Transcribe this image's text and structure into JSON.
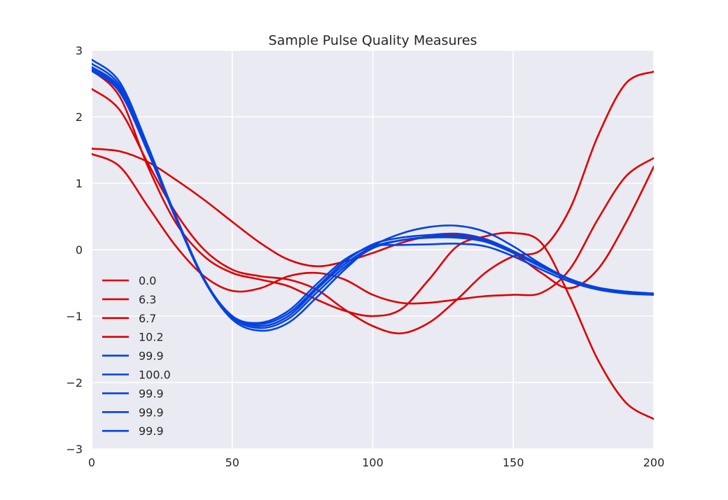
{
  "chart_data": {
    "type": "line",
    "title": "Sample Pulse Quality Measures",
    "xlabel": "",
    "ylabel": "",
    "xlim": [
      0,
      200
    ],
    "ylim": [
      -3,
      3
    ],
    "x_ticks": [
      0,
      50,
      100,
      150,
      200
    ],
    "y_ticks": [
      -3,
      -2,
      -1,
      0,
      1,
      2,
      3
    ],
    "y_tick_labels": [
      "−3",
      "−2",
      "−1",
      "0",
      "1",
      "2",
      "3"
    ],
    "grid": true,
    "background": "#EAEAF2",
    "legend_position": "lower-left",
    "x": [
      0,
      10,
      20,
      30,
      40,
      50,
      60,
      70,
      80,
      90,
      100,
      110,
      120,
      130,
      140,
      150,
      160,
      170,
      180,
      190,
      200
    ],
    "series": [
      {
        "name": "0.0",
        "color": "#DD0000",
        "values": [
          1.52,
          1.48,
          1.32,
          1.05,
          0.75,
          0.42,
          0.1,
          -0.15,
          -0.25,
          -0.18,
          -0.05,
          0.1,
          0.2,
          0.22,
          0.15,
          -0.05,
          -0.35,
          -0.58,
          -0.3,
          0.4,
          1.25
        ]
      },
      {
        "name": "6.3",
        "color": "#DD0000",
        "values": [
          2.42,
          2.1,
          1.3,
          0.55,
          0.0,
          -0.3,
          -0.4,
          -0.45,
          -0.6,
          -0.9,
          -1.15,
          -1.26,
          -1.1,
          -0.75,
          -0.35,
          -0.1,
          0.0,
          0.6,
          1.7,
          2.5,
          2.68
        ]
      },
      {
        "name": "6.7",
        "color": "#DD0000",
        "values": [
          1.44,
          1.25,
          0.65,
          0.05,
          -0.4,
          -0.62,
          -0.58,
          -0.4,
          -0.35,
          -0.45,
          -0.68,
          -0.8,
          -0.8,
          -0.75,
          -0.7,
          -0.68,
          -0.65,
          -0.3,
          0.45,
          1.1,
          1.38
        ]
      },
      {
        "name": "10.2",
        "color": "#DD0000",
        "values": [
          2.7,
          2.3,
          1.25,
          0.4,
          -0.1,
          -0.35,
          -0.45,
          -0.55,
          -0.75,
          -0.92,
          -1.0,
          -0.9,
          -0.45,
          0.05,
          0.2,
          0.25,
          0.1,
          -0.7,
          -1.65,
          -2.3,
          -2.55
        ]
      },
      {
        "name": "99.9",
        "color": "#0343DF",
        "values": [
          2.72,
          2.4,
          1.5,
          0.48,
          -0.45,
          -1.0,
          -1.15,
          -1.0,
          -0.6,
          -0.22,
          0.04,
          0.14,
          0.18,
          0.18,
          0.12,
          -0.05,
          -0.26,
          -0.45,
          -0.58,
          -0.64,
          -0.66
        ]
      },
      {
        "name": "100.0",
        "color": "#0343DF",
        "values": [
          2.75,
          2.43,
          1.52,
          0.5,
          -0.44,
          -1.02,
          -1.18,
          -1.04,
          -0.65,
          -0.26,
          0.02,
          0.14,
          0.19,
          0.2,
          0.13,
          -0.04,
          -0.25,
          -0.44,
          -0.57,
          -0.63,
          -0.66
        ]
      },
      {
        "name": "99.9",
        "color": "#0343DF",
        "values": [
          2.86,
          2.52,
          1.56,
          0.48,
          -0.46,
          -1.05,
          -1.22,
          -1.1,
          -0.72,
          -0.3,
          0.05,
          0.24,
          0.34,
          0.36,
          0.27,
          0.05,
          -0.22,
          -0.44,
          -0.58,
          -0.65,
          -0.67
        ]
      },
      {
        "name": "99.9",
        "color": "#0343DF",
        "values": [
          2.8,
          2.47,
          1.53,
          0.47,
          -0.45,
          -1.0,
          -1.12,
          -0.96,
          -0.57,
          -0.18,
          0.08,
          0.18,
          0.22,
          0.24,
          0.16,
          -0.02,
          -0.24,
          -0.44,
          -0.58,
          -0.64,
          -0.67
        ]
      },
      {
        "name": "99.9",
        "color": "#0343DF",
        "values": [
          2.69,
          2.37,
          1.47,
          0.46,
          -0.46,
          -1.0,
          -1.1,
          -0.92,
          -0.52,
          -0.15,
          0.05,
          0.07,
          0.08,
          0.09,
          0.05,
          -0.1,
          -0.3,
          -0.48,
          -0.6,
          -0.66,
          -0.68
        ]
      }
    ]
  }
}
